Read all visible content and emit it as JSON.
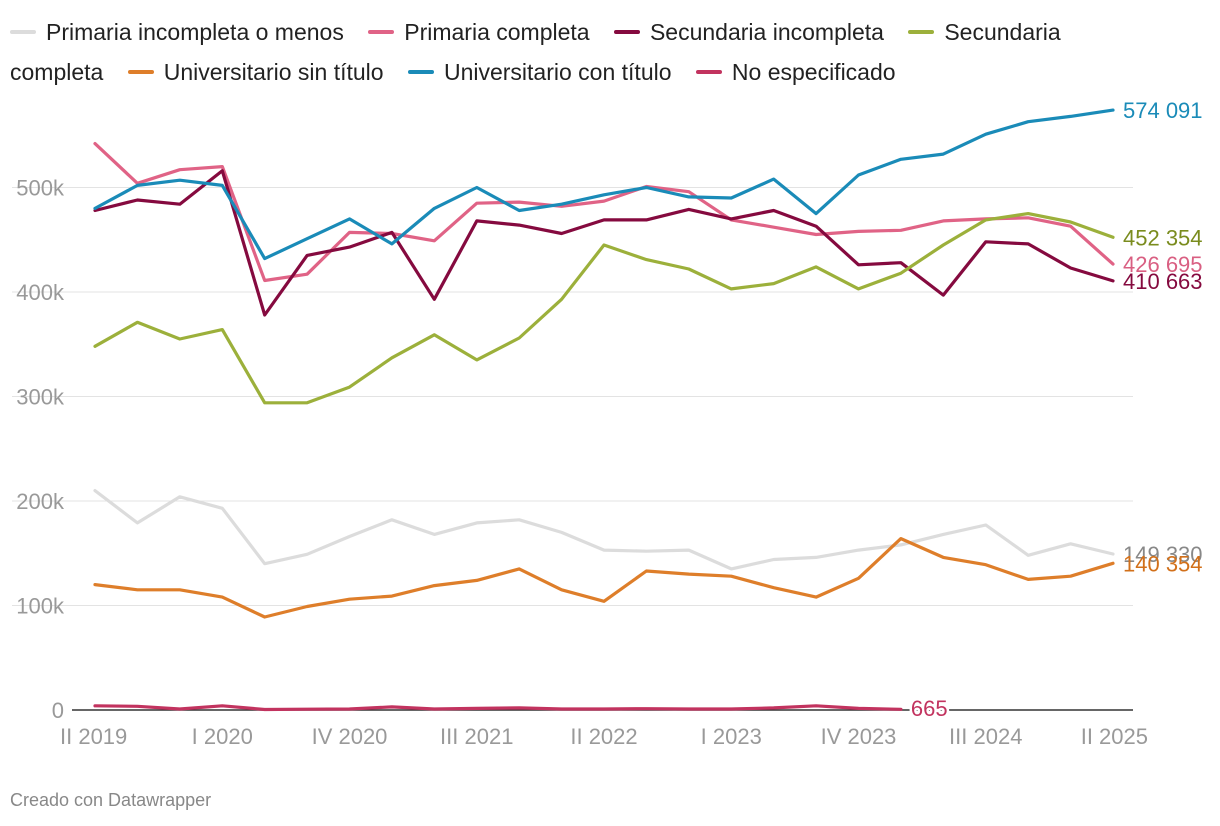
{
  "chart_data": {
    "type": "line",
    "x": [
      "II 2019",
      "III 2019",
      "IV 2019",
      "I 2020",
      "II 2020",
      "III 2020",
      "IV 2020",
      "I 2021",
      "II 2021",
      "III 2021",
      "IV 2021",
      "I 2022",
      "II 2022",
      "III 2022",
      "IV 2022",
      "I 2023",
      "II 2023",
      "III 2023",
      "IV 2023",
      "I 2024",
      "II 2024",
      "III 2024",
      "IV 2024",
      "I 2025",
      "II 2025"
    ],
    "x_tick_labels": [
      "II 2019",
      "I 2020",
      "IV 2020",
      "III 2021",
      "II 2022",
      "I 2023",
      "IV 2023",
      "III 2024",
      "II 2025"
    ],
    "y_ticks": [
      0,
      100000,
      200000,
      300000,
      400000,
      500000
    ],
    "y_tick_labels": [
      "0",
      "100k",
      "200k",
      "300k",
      "400k",
      "500k"
    ],
    "ylim": [
      0,
      600000
    ],
    "grid": true,
    "legend_position": "top",
    "series": [
      {
        "name": "Primaria incompleta o menos",
        "color": "#dcdcdc",
        "label_color": "#888888",
        "end_label": "149 330",
        "values": [
          210000,
          179000,
          204000,
          193000,
          140000,
          149000,
          166000,
          182000,
          168000,
          179000,
          182000,
          170000,
          153000,
          152000,
          153000,
          135000,
          144000,
          146000,
          153000,
          158000,
          168000,
          177000,
          148000,
          159000,
          149330
        ]
      },
      {
        "name": "Primaria completa",
        "color": "#e06386",
        "label_color": "#d95f82",
        "end_label": "426 695",
        "values": [
          542000,
          504000,
          517000,
          520000,
          411000,
          417000,
          457000,
          456000,
          449000,
          485000,
          486000,
          482000,
          487000,
          501000,
          496000,
          469000,
          462000,
          455000,
          458000,
          459000,
          468000,
          470000,
          471000,
          463000,
          426695
        ]
      },
      {
        "name": "Secundaria incompleta",
        "color": "#850a3f",
        "label_color": "#850a3f",
        "end_label": "410 663",
        "values": [
          478000,
          488000,
          484000,
          516000,
          378000,
          435000,
          443000,
          457000,
          393000,
          468000,
          464000,
          456000,
          469000,
          469000,
          479000,
          470000,
          478000,
          463000,
          426000,
          428000,
          397000,
          448000,
          446000,
          423000,
          410663
        ]
      },
      {
        "name": "Secundaria completa",
        "color": "#9cb03b",
        "label_color": "#7a8c1e",
        "end_label": "452 354",
        "values": [
          348000,
          371000,
          355000,
          364000,
          294000,
          294000,
          309000,
          337000,
          359000,
          335000,
          356000,
          393000,
          445000,
          431000,
          422000,
          403000,
          408000,
          424000,
          403000,
          418000,
          445000,
          469000,
          475000,
          467000,
          452354
        ]
      },
      {
        "name": "Universitario sin título",
        "color": "#de7e2a",
        "label_color": "#d2701a",
        "end_label": "140 354",
        "values": [
          120000,
          115000,
          115000,
          108000,
          89000,
          99000,
          106000,
          109000,
          119000,
          124000,
          135000,
          115000,
          104000,
          133000,
          130000,
          128000,
          117000,
          108000,
          126000,
          164000,
          146000,
          139000,
          125000,
          128000,
          140354
        ]
      },
      {
        "name": "Universitario con título",
        "color": "#1a8bb8",
        "label_color": "#1a8bb8",
        "end_label": "574 091",
        "values": [
          480000,
          502000,
          507000,
          502000,
          432000,
          451000,
          470000,
          446000,
          480000,
          500000,
          478000,
          484000,
          493000,
          500000,
          491000,
          490000,
          508000,
          475000,
          512000,
          527000,
          532000,
          551000,
          563000,
          568000,
          574091
        ]
      },
      {
        "name": "No especificado",
        "color": "#c2335f",
        "label_color": "#c2335f",
        "end_label": "665",
        "values": [
          4000,
          3500,
          1000,
          4000,
          500,
          800,
          1000,
          3000,
          1000,
          1500,
          2000,
          1000,
          1000,
          1200,
          1000,
          1000,
          2000,
          4000,
          1500,
          665,
          null,
          null,
          null,
          null,
          null
        ]
      }
    ]
  },
  "credit": "Creado con Datawrapper"
}
